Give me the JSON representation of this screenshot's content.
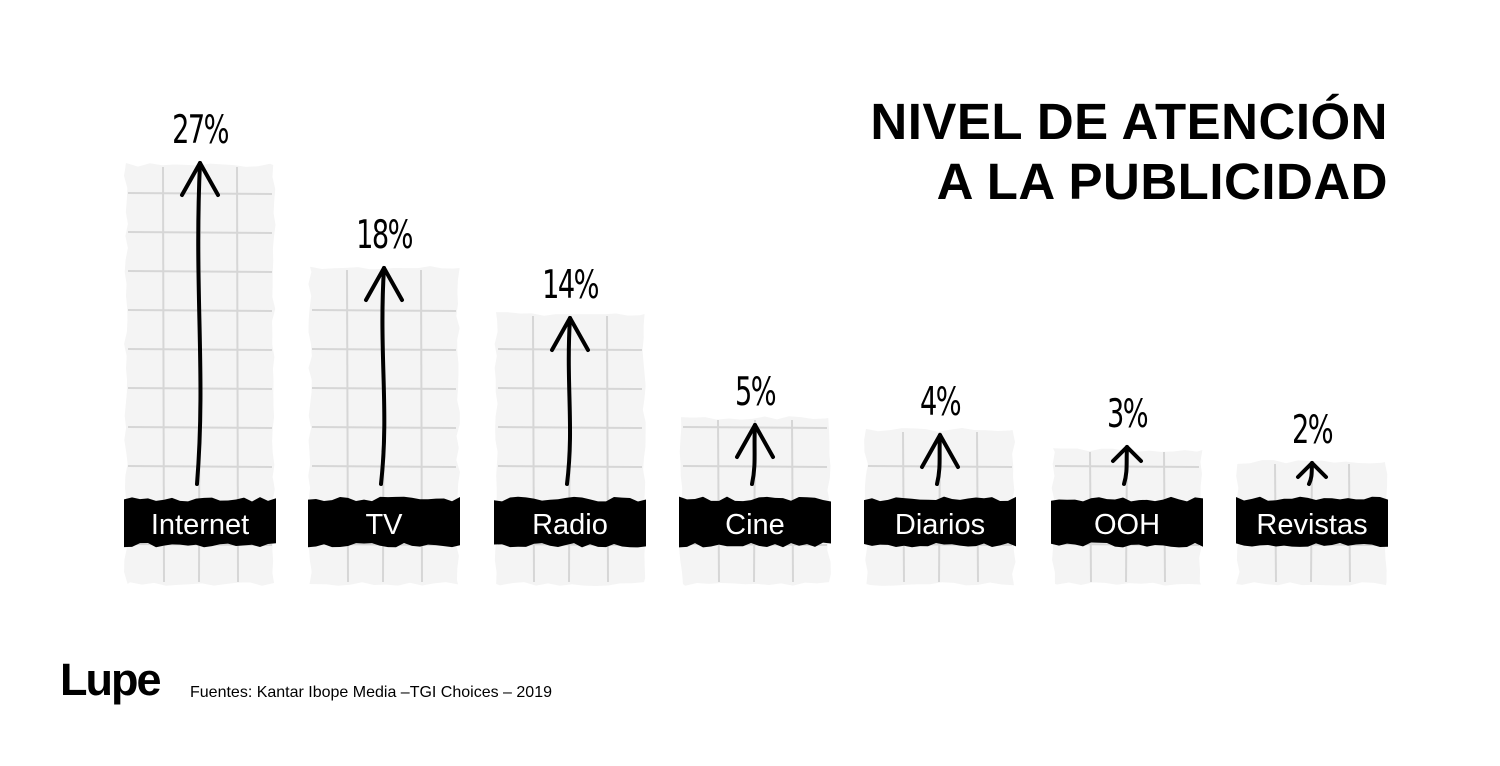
{
  "title": {
    "line1": "NIVEL DE ATENCIÓN",
    "line2": "A LA PUBLICIDAD"
  },
  "footer": {
    "logo": "Lupe",
    "source": "Fuentes: Kantar Ibope Media –TGI Choices – 2019"
  },
  "chart_data": {
    "type": "bar",
    "title": "NIVEL DE ATENCIÓN A LA PUBLICIDAD",
    "categories": [
      "Internet",
      "TV",
      "Radio",
      "Cine",
      "Diarios",
      "OOH",
      "Revistas"
    ],
    "values": [
      27,
      18,
      14,
      5,
      4,
      3,
      2
    ],
    "value_labels": [
      "27%",
      "18%",
      "14%",
      "5%",
      "4%",
      "3%",
      "2%"
    ],
    "unit": "%",
    "grid": true,
    "legend": "none",
    "colors": {
      "bar_fill": "#f4f4f4",
      "grid": "#d6d6d6",
      "label_bg": "#000000",
      "label_text": "#ffffff",
      "arrow": "#000000"
    }
  }
}
